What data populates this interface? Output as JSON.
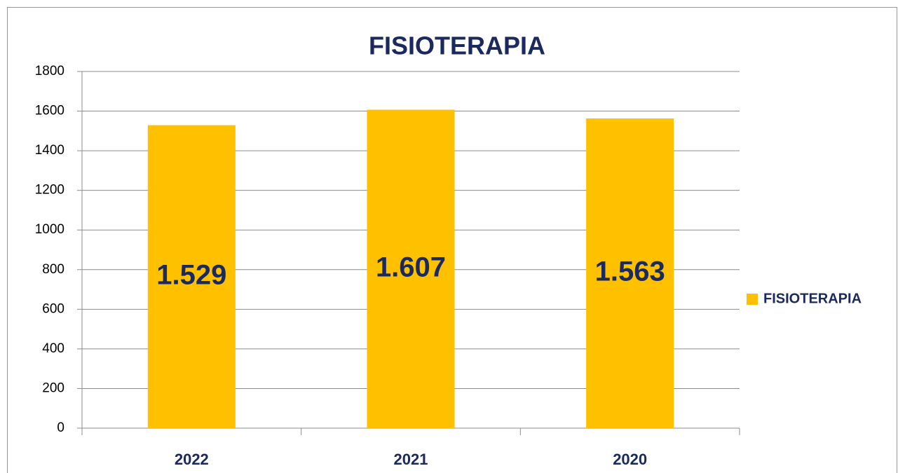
{
  "chart_data": {
    "type": "bar",
    "title": "FISIOTERAPIA",
    "categories": [
      "2022",
      "2021",
      "2020"
    ],
    "series": [
      {
        "name": "FISIOTERAPIA",
        "color": "#ffc000",
        "values": [
          1529,
          1607,
          1563
        ],
        "value_labels": [
          "1.529",
          "1.607",
          "1.563"
        ]
      }
    ],
    "ylim": [
      0,
      1800
    ],
    "yticks": [
      0,
      200,
      400,
      600,
      800,
      1000,
      1200,
      1400,
      1600,
      1800
    ],
    "grid": true,
    "legend": "right"
  }
}
